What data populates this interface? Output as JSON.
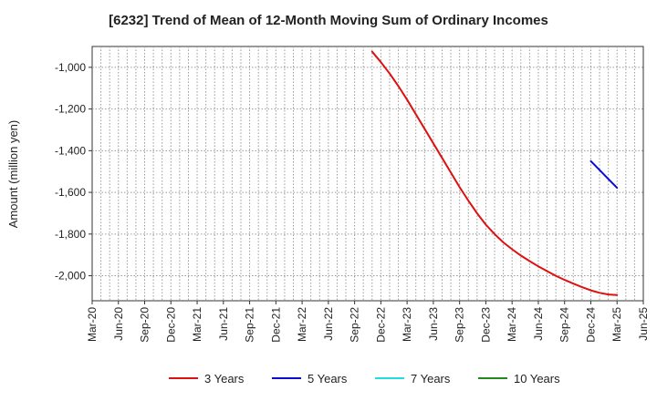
{
  "chart_data": {
    "type": "line",
    "title": "[6232]  Trend of Mean of 12-Month Moving Sum of Ordinary Incomes",
    "xlabel": "",
    "ylabel": "Amount (million yen)",
    "x_ticks": [
      "Mar-20",
      "Jun-20",
      "Sep-20",
      "Dec-20",
      "Mar-21",
      "Jun-21",
      "Sep-21",
      "Dec-21",
      "Mar-22",
      "Jun-22",
      "Sep-22",
      "Dec-22",
      "Mar-23",
      "Jun-23",
      "Sep-23",
      "Dec-23",
      "Mar-24",
      "Jun-24",
      "Sep-24",
      "Dec-24",
      "Mar-25",
      "Jun-25"
    ],
    "y_ticks": [
      -1000,
      -1200,
      -1400,
      -1600,
      -1800,
      -2000
    ],
    "y_tick_labels": [
      "-1,000",
      "-1,200",
      "-1,400",
      "-1,600",
      "-1,800",
      "-2,000"
    ],
    "ylim": [
      -2120,
      -900
    ],
    "grid": true,
    "legend_position": "bottom",
    "series": [
      {
        "name": "3 Years",
        "color": "#dd1111",
        "points": [
          [
            "Nov-22",
            -925
          ],
          [
            "Dec-22",
            -975
          ],
          [
            "Jan-23",
            -1030
          ],
          [
            "Feb-23",
            -1090
          ],
          [
            "Mar-23",
            -1155
          ],
          [
            "Apr-23",
            -1225
          ],
          [
            "May-23",
            -1295
          ],
          [
            "Jun-23",
            -1365
          ],
          [
            "Jul-23",
            -1435
          ],
          [
            "Aug-23",
            -1505
          ],
          [
            "Sep-23",
            -1575
          ],
          [
            "Oct-23",
            -1640
          ],
          [
            "Nov-23",
            -1700
          ],
          [
            "Dec-23",
            -1755
          ],
          [
            "Jan-24",
            -1800
          ],
          [
            "Feb-24",
            -1840
          ],
          [
            "Mar-24",
            -1873
          ],
          [
            "Apr-24",
            -1903
          ],
          [
            "May-24",
            -1930
          ],
          [
            "Jun-24",
            -1955
          ],
          [
            "Jul-24",
            -1978
          ],
          [
            "Aug-24",
            -2000
          ],
          [
            "Sep-24",
            -2020
          ],
          [
            "Oct-24",
            -2038
          ],
          [
            "Nov-24",
            -2055
          ],
          [
            "Dec-24",
            -2070
          ],
          [
            "Jan-25",
            -2082
          ],
          [
            "Feb-25",
            -2090
          ],
          [
            "Mar-25",
            -2093
          ]
        ]
      },
      {
        "name": "5 Years",
        "color": "#0a0ad0",
        "points": [
          [
            "Dec-24",
            -1450
          ],
          [
            "Jan-25",
            -1493
          ],
          [
            "Feb-25",
            -1536
          ],
          [
            "Mar-25",
            -1578
          ]
        ]
      },
      {
        "name": "7 Years",
        "color": "#22dddd",
        "points": []
      },
      {
        "name": "10 Years",
        "color": "#228822",
        "points": []
      }
    ]
  }
}
